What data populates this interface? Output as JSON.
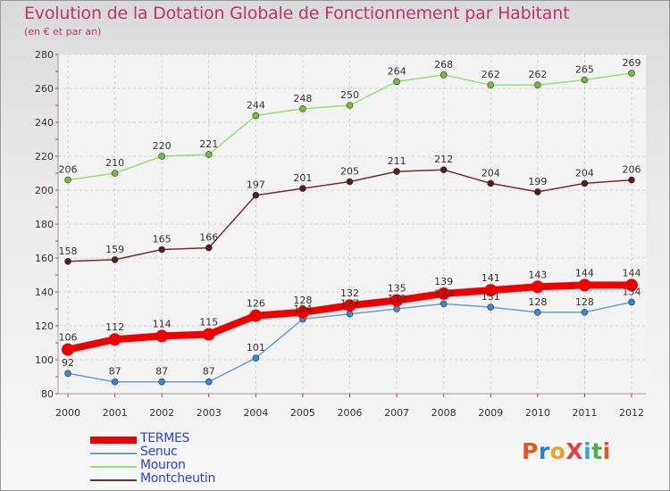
{
  "header": {
    "title": "Evolution de la Dotation Globale de Fonctionnement par Habitant",
    "subtitle": "(en € et par an)"
  },
  "logo": {
    "text": "ProXiti",
    "colors": [
      "#e05a20",
      "#2a7fd4",
      "#f0a020",
      "#e04040",
      "#3aa0e0",
      "#50b040",
      "#e05a20"
    ]
  },
  "chart_data": {
    "type": "line",
    "x": [
      "2000",
      "2001",
      "2002",
      "2003",
      "2004",
      "2005",
      "2006",
      "2007",
      "2008",
      "2009",
      "2010",
      "2011",
      "2012"
    ],
    "ylim": [
      80,
      280
    ],
    "yticks": [
      80,
      100,
      120,
      140,
      160,
      180,
      200,
      220,
      240,
      260,
      280
    ],
    "grid": true,
    "legend_position": "bottom-left",
    "series": [
      {
        "name": "Mouron",
        "color": "#99e07a",
        "marker": "#6cc038",
        "values": [
          206,
          210,
          220,
          221,
          244,
          248,
          250,
          264,
          268,
          262,
          262,
          265,
          269
        ]
      },
      {
        "name": "Montcheutin",
        "color": "#7a2b2b",
        "marker": "#5a1a1a",
        "values": [
          158,
          159,
          165,
          166,
          197,
          201,
          205,
          211,
          212,
          204,
          199,
          204,
          206
        ]
      },
      {
        "name": "Senuc",
        "color": "#6a9ed0",
        "marker": "#3a86d0",
        "values": [
          92,
          87,
          87,
          87,
          101,
          124,
          127,
          130,
          133,
          131,
          128,
          128,
          134
        ]
      },
      {
        "name": "TERMES",
        "color": "#ee0000",
        "marker": "#ee0000",
        "values": [
          106,
          112,
          114,
          115,
          126,
          128,
          132,
          135,
          139,
          141,
          143,
          144,
          144
        ]
      }
    ],
    "legend_order": [
      "TERMES",
      "Senuc",
      "Mouron",
      "Montcheutin"
    ]
  }
}
